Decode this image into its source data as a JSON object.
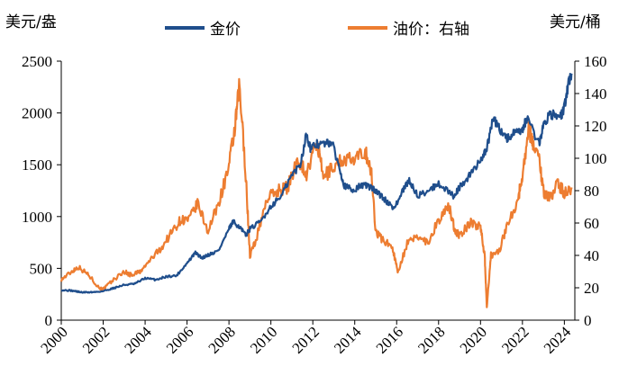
{
  "chart_data": {
    "type": "line",
    "title": "",
    "left_axis_unit": "美元/盎",
    "right_axis_unit": "美元/桶",
    "x_ticks": [
      "2000",
      "2002",
      "2004",
      "2006",
      "2008",
      "2010",
      "2012",
      "2014",
      "2016",
      "2018",
      "2020",
      "2022",
      "2024"
    ],
    "x_range": [
      2000,
      2024.5
    ],
    "y_left_ticks": [
      0,
      500,
      1000,
      1500,
      2000,
      2500
    ],
    "y_left_range": [
      0,
      2500
    ],
    "y_right_ticks": [
      0,
      20,
      40,
      60,
      80,
      100,
      120,
      140,
      160
    ],
    "y_right_range": [
      0,
      160
    ],
    "legend_position": "top",
    "grid": false,
    "series": [
      {
        "name": "金价",
        "axis": "left",
        "color": "#1f4e8c",
        "x": [
          2000.0,
          2000.5,
          2001.0,
          2001.5,
          2002.0,
          2002.5,
          2003.0,
          2003.5,
          2004.0,
          2004.5,
          2005.0,
          2005.5,
          2006.0,
          2006.4,
          2006.7,
          2007.0,
          2007.5,
          2008.0,
          2008.2,
          2008.5,
          2008.8,
          2009.0,
          2009.5,
          2010.0,
          2010.5,
          2011.0,
          2011.4,
          2011.7,
          2011.9,
          2012.2,
          2012.6,
          2012.9,
          2013.3,
          2013.5,
          2013.9,
          2014.3,
          2014.6,
          2015.0,
          2015.5,
          2015.9,
          2016.3,
          2016.6,
          2017.0,
          2017.5,
          2018.0,
          2018.7,
          2019.0,
          2019.5,
          2020.0,
          2020.3,
          2020.6,
          2020.9,
          2021.3,
          2021.6,
          2022.0,
          2022.2,
          2022.8,
          2023.0,
          2023.3,
          2023.8,
          2024.0,
          2024.2,
          2024.35
        ],
        "values": [
          290,
          285,
          268,
          270,
          280,
          310,
          340,
          350,
          405,
          390,
          420,
          430,
          550,
          650,
          600,
          630,
          670,
          880,
          950,
          900,
          820,
          880,
          950,
          1100,
          1200,
          1400,
          1500,
          1800,
          1650,
          1700,
          1700,
          1720,
          1450,
          1300,
          1250,
          1300,
          1300,
          1250,
          1150,
          1080,
          1250,
          1350,
          1200,
          1250,
          1320,
          1200,
          1280,
          1400,
          1550,
          1650,
          1950,
          1850,
          1750,
          1800,
          1820,
          1950,
          1700,
          1880,
          2000,
          1950,
          2050,
          2300,
          2380
        ]
      },
      {
        "name": "油价：右轴",
        "axis": "right",
        "color": "#ed7d31",
        "x": [
          2000.0,
          2000.5,
          2000.8,
          2001.3,
          2001.8,
          2002.0,
          2002.5,
          2003.0,
          2003.3,
          2003.8,
          2004.3,
          2004.8,
          2005.3,
          2005.7,
          2006.1,
          2006.5,
          2007.0,
          2007.5,
          2008.0,
          2008.3,
          2008.5,
          2008.8,
          2009.0,
          2009.3,
          2009.8,
          2010.3,
          2010.8,
          2011.3,
          2011.7,
          2012.2,
          2012.5,
          2013.0,
          2013.5,
          2014.0,
          2014.5,
          2014.8,
          2015.0,
          2015.3,
          2015.8,
          2016.05,
          2016.5,
          2017.0,
          2017.5,
          2018.0,
          2018.5,
          2018.8,
          2019.0,
          2019.5,
          2020.0,
          2020.2,
          2020.3,
          2020.5,
          2020.9,
          2021.3,
          2021.8,
          2022.0,
          2022.3,
          2022.5,
          2022.8,
          2023.0,
          2023.3,
          2023.7,
          2024.0,
          2024.35
        ],
        "values": [
          25,
          30,
          33,
          28,
          20,
          19,
          25,
          30,
          28,
          30,
          38,
          45,
          55,
          62,
          62,
          72,
          55,
          72,
          95,
          120,
          145,
          90,
          40,
          50,
          75,
          80,
          82,
          100,
          90,
          110,
          88,
          95,
          100,
          98,
          105,
          90,
          55,
          50,
          45,
          30,
          47,
          52,
          48,
          62,
          70,
          55,
          52,
          60,
          58,
          40,
          8,
          40,
          43,
          60,
          75,
          90,
          118,
          110,
          100,
          80,
          75,
          85,
          78,
          82
        ]
      }
    ]
  },
  "legend": {
    "gold_label": "金价",
    "oil_label": "油价：右轴"
  }
}
